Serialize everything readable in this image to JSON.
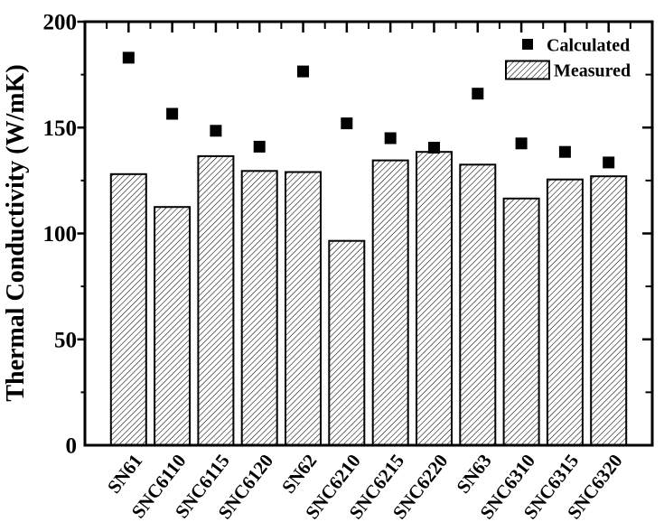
{
  "chart_data": {
    "type": "bar",
    "title": "",
    "categories": [
      "SN61",
      "SNC6110",
      "SNC6115",
      "SNC6120",
      "SN62",
      "SNC6210",
      "SNC6215",
      "SNC6220",
      "SN63",
      "SNC6310",
      "SNC6315",
      "SNC6320"
    ],
    "series": [
      {
        "name": "Calculated",
        "marker": "filled-square",
        "values": [
          183,
          156.5,
          148.5,
          141,
          176.5,
          152,
          145,
          140.5,
          166,
          142.5,
          138.5,
          133.5
        ]
      },
      {
        "name": "Measured",
        "style": "hatched-bar",
        "values": [
          128,
          112.5,
          136.5,
          129.5,
          129,
          96.5,
          134.5,
          138.5,
          132.5,
          116.5,
          125.5,
          127
        ]
      }
    ],
    "xlabel": "",
    "ylabel": "Thermal Conductivity (W/mK)",
    "ylim": [
      0,
      200
    ],
    "yticks": [
      0,
      50,
      100,
      150,
      200
    ],
    "yminor_step": 25,
    "grid": false,
    "legend_position": "top-right-inside",
    "colors": {
      "foreground": "#000000",
      "background": "#ffffff"
    }
  }
}
